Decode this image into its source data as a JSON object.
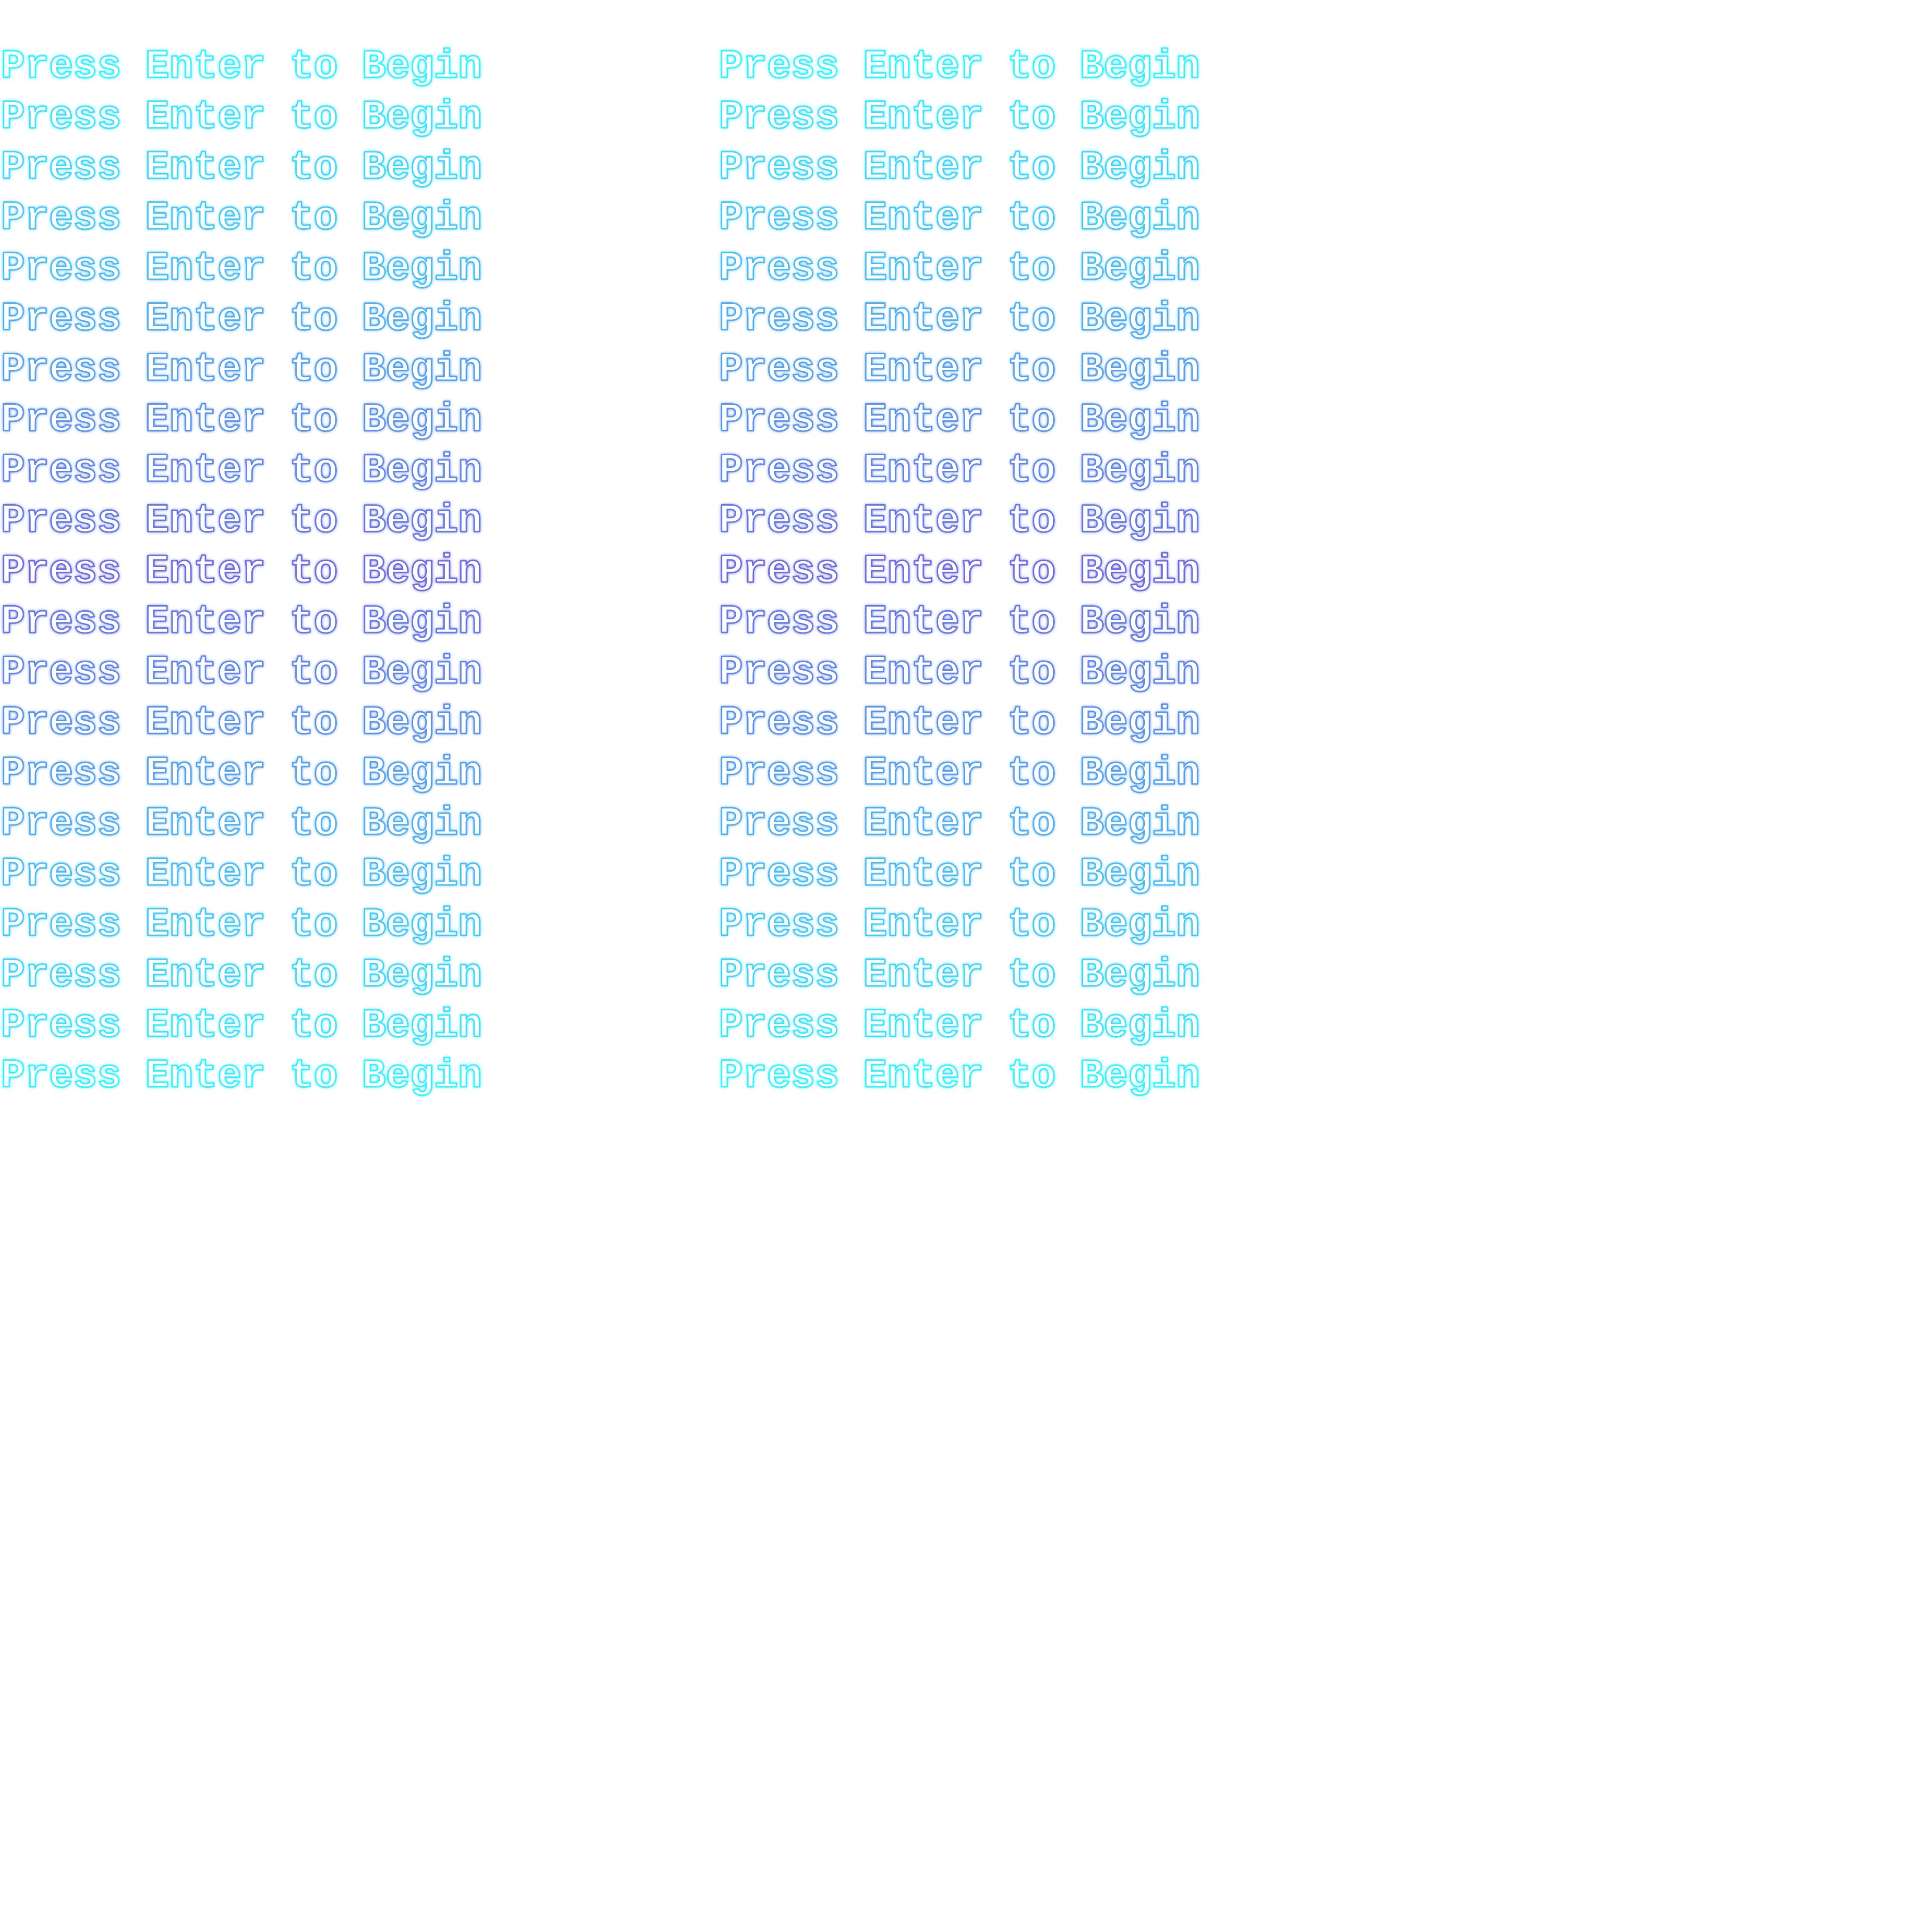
{
  "screen": {
    "prompt_text": "Press Enter to Begin",
    "rows_per_column": 21,
    "columns": 2
  },
  "colors": {
    "edge": "#33f2ff",
    "middle": "#6b6ae0",
    "background": "#ffffff"
  }
}
